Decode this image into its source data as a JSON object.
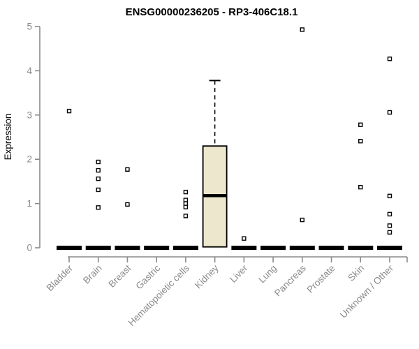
{
  "colors": {
    "background": "#ffffff",
    "title_text": "#000000",
    "axis": "#8a8a8a",
    "tick_label": "#8a8a8a",
    "box_fill": "#ece7cd",
    "box_stroke": "#000000",
    "median": "#000000",
    "whisker": "#000000",
    "outlier_stroke": "#000000",
    "outlier_fill": "#ffffff"
  },
  "chart_data": {
    "type": "boxplot",
    "title": "ENSG00000236205 - RP3-406C18.1",
    "xlabel": "",
    "ylabel": "Expression",
    "ylim": [
      0,
      5
    ],
    "yticks": [
      0,
      1,
      2,
      3,
      4,
      5
    ],
    "grid": false,
    "x_label_rotation": 45,
    "whisker_style": "dashed",
    "outlier_marker": "open-square",
    "categories": [
      "Bladder",
      "Brain",
      "Breast",
      "Gastric",
      "Hematopoietic cells",
      "Kidney",
      "Liver",
      "Lung",
      "Pancreas",
      "Prostate",
      "Skin",
      "Unknown / Other"
    ],
    "boxes": [
      {
        "category": "Bladder",
        "q1": 0,
        "median": 0,
        "q3": 0,
        "whisker_low": 0,
        "whisker_high": 0,
        "outliers": [
          3.09
        ]
      },
      {
        "category": "Brain",
        "q1": 0,
        "median": 0,
        "q3": 0,
        "whisker_low": 0,
        "whisker_high": 0,
        "outliers": [
          1.94,
          1.75,
          1.56,
          1.31,
          0.91
        ]
      },
      {
        "category": "Breast",
        "q1": 0,
        "median": 0,
        "q3": 0,
        "whisker_low": 0,
        "whisker_high": 0,
        "outliers": [
          1.77,
          0.98
        ]
      },
      {
        "category": "Gastric",
        "q1": 0,
        "median": 0,
        "q3": 0,
        "whisker_low": 0,
        "whisker_high": 0,
        "outliers": []
      },
      {
        "category": "Hematopoietic cells",
        "q1": 0,
        "median": 0,
        "q3": 0,
        "whisker_low": 0,
        "whisker_high": 0,
        "outliers": [
          1.26,
          1.08,
          1.0,
          0.92,
          0.72
        ]
      },
      {
        "category": "Kidney",
        "q1": 0.02,
        "median": 1.18,
        "q3": 2.3,
        "whisker_low": 0.02,
        "whisker_high": 3.78,
        "outliers": []
      },
      {
        "category": "Liver",
        "q1": 0,
        "median": 0,
        "q3": 0,
        "whisker_low": 0,
        "whisker_high": 0,
        "outliers": [
          0.21
        ]
      },
      {
        "category": "Lung",
        "q1": 0,
        "median": 0,
        "q3": 0,
        "whisker_low": 0,
        "whisker_high": 0,
        "outliers": []
      },
      {
        "category": "Pancreas",
        "q1": 0,
        "median": 0,
        "q3": 0,
        "whisker_low": 0,
        "whisker_high": 0,
        "outliers": [
          4.93,
          0.63
        ]
      },
      {
        "category": "Prostate",
        "q1": 0,
        "median": 0,
        "q3": 0,
        "whisker_low": 0,
        "whisker_high": 0,
        "outliers": []
      },
      {
        "category": "Skin",
        "q1": 0,
        "median": 0,
        "q3": 0,
        "whisker_low": 0,
        "whisker_high": 0,
        "outliers": [
          2.78,
          2.41,
          1.37
        ]
      },
      {
        "category": "Unknown / Other",
        "q1": 0,
        "median": 0,
        "q3": 0,
        "whisker_low": 0,
        "whisker_high": 0,
        "outliers": [
          4.27,
          3.06,
          1.17,
          0.76,
          0.5,
          0.35
        ]
      }
    ]
  }
}
